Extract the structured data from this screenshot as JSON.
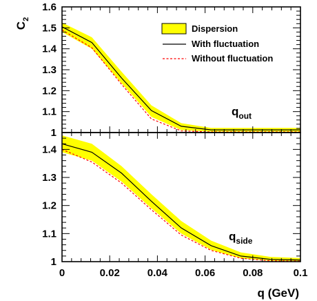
{
  "colors": {
    "band_fill": "#ffff00",
    "with_line": "#000000",
    "without_line": "#ff0000"
  },
  "figure": {
    "ylabel_main": "C",
    "ylabel_sub": "2",
    "xlabel": "q (GeV)"
  },
  "legend": {
    "dispersion": "Dispersion",
    "with": "With fluctuation",
    "without": "Without fluctuation"
  },
  "chart_data": [
    {
      "type": "line",
      "panel": "top",
      "label_main": "q",
      "label_sub": "out",
      "xlim": [
        0,
        0.1
      ],
      "ylim": [
        1.0,
        1.6
      ],
      "x_ticks": [
        0,
        0.02,
        0.04,
        0.06,
        0.08,
        0.1
      ],
      "x_tick_labels": [
        "0",
        "0.02",
        "0.04",
        "0.06",
        "0.08",
        "0.1"
      ],
      "y_ticks": [
        1.1,
        1.2,
        1.3,
        1.4,
        1.5,
        1.6
      ],
      "y_tick_labels": [
        "1.1",
        "1.2",
        "1.3",
        "1.4",
        "1.5",
        "1.6"
      ],
      "legend_position": "top-right",
      "x": [
        0,
        0.0125,
        0.025,
        0.0375,
        0.05,
        0.0625,
        0.075,
        0.0875,
        0.1
      ],
      "series": [
        {
          "name": "Dispersion",
          "style": "band",
          "upper": [
            1.525,
            1.455,
            1.29,
            1.13,
            1.045,
            1.022,
            1.022,
            1.022,
            1.022
          ],
          "lower": [
            1.48,
            1.4,
            1.235,
            1.075,
            1.012,
            1.005,
            1.005,
            1.005,
            1.005
          ]
        },
        {
          "name": "With fluctuation",
          "style": "solid",
          "values": [
            1.505,
            1.43,
            1.26,
            1.105,
            1.03,
            1.013,
            1.013,
            1.013,
            1.013
          ]
        },
        {
          "name": "Without fluctuation",
          "style": "dashed",
          "values": [
            1.49,
            1.405,
            1.23,
            1.065,
            1.008,
            1.003,
            1.003,
            1.003,
            1.003
          ]
        }
      ]
    },
    {
      "type": "line",
      "panel": "bottom",
      "label_main": "q",
      "label_sub": "side",
      "xlim": [
        0,
        0.1
      ],
      "ylim": [
        1.0,
        1.46
      ],
      "x_ticks": [
        0,
        0.02,
        0.04,
        0.06,
        0.08,
        0.1
      ],
      "x_tick_labels": [
        "0",
        "0.02",
        "0.04",
        "0.06",
        "0.08",
        "0.1"
      ],
      "y_ticks": [
        1,
        1.1,
        1.2,
        1.3,
        1.4
      ],
      "y_tick_labels": [
        "1",
        "1.1",
        "1.2",
        "1.3",
        "1.4"
      ],
      "x": [
        0,
        0.0125,
        0.025,
        0.0375,
        0.05,
        0.0625,
        0.075,
        0.0875,
        0.1
      ],
      "series": [
        {
          "name": "Dispersion",
          "style": "band",
          "upper": [
            1.45,
            1.42,
            1.34,
            1.24,
            1.145,
            1.075,
            1.033,
            1.017,
            1.013
          ],
          "lower": [
            1.39,
            1.36,
            1.285,
            1.19,
            1.1,
            1.042,
            1.012,
            1.003,
            1.002
          ]
        },
        {
          "name": "With fluctuation",
          "style": "solid",
          "values": [
            1.42,
            1.39,
            1.315,
            1.215,
            1.12,
            1.057,
            1.02,
            1.008,
            1.006
          ]
        },
        {
          "name": "Without fluctuation",
          "style": "dashed",
          "values": [
            1.4,
            1.355,
            1.28,
            1.185,
            1.095,
            1.04,
            1.012,
            1.003,
            1.002
          ]
        }
      ]
    }
  ]
}
